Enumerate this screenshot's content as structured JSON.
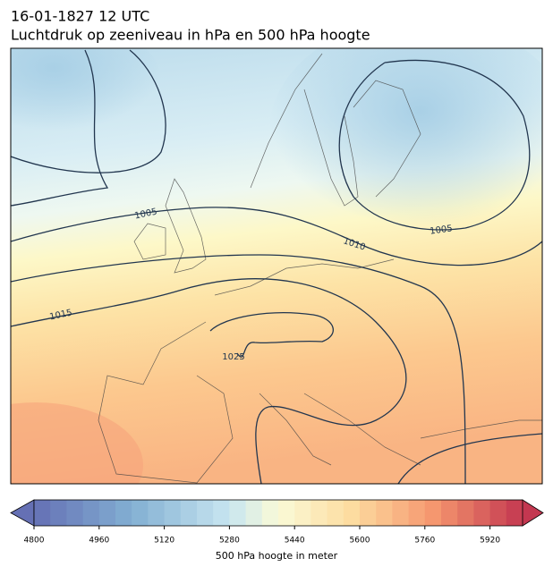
{
  "header": {
    "title": "16-01-1827 12 UTC",
    "subtitle": "Luchtdruk op zeeniveau in hPa en 500 hPa hoogte"
  },
  "contour_labels": [
    1005,
    1010,
    1005,
    1015,
    1025
  ],
  "colorbar": {
    "label": "500 hPa hoogte in meter",
    "lim": [
      4800,
      6000
    ],
    "ticks": [
      4800,
      4960,
      5120,
      5280,
      5440,
      5600,
      5760,
      5920
    ]
  }
}
